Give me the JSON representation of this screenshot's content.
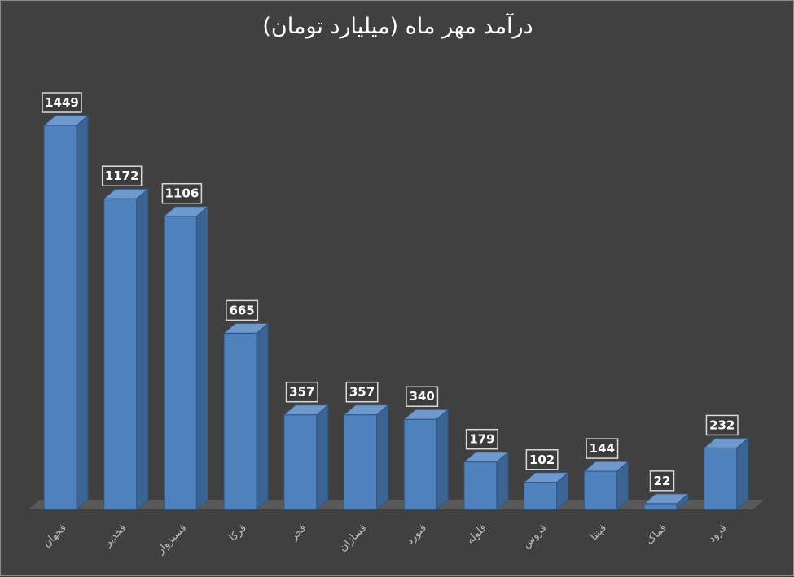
{
  "chart_data": {
    "type": "bar",
    "title": "درآمد مهر ماه (میلیارد تومان)",
    "categories": [
      "فجهان",
      "فخدیر",
      "فسبزوار",
      "فرکا",
      "فجر",
      "فسازان",
      "فنورد",
      "فلوله",
      "فروس",
      "فپنتا",
      "فماک",
      "فرود"
    ],
    "values": [
      1449,
      1172,
      1106,
      665,
      357,
      357,
      340,
      179,
      102,
      144,
      22,
      232
    ],
    "ylim": [
      0,
      1449
    ],
    "grid": false,
    "legend": "none",
    "style": "3d-column",
    "colors": {
      "background": "#404040",
      "bar_front": "#4f81bd",
      "bar_side": "#3b6493",
      "bar_top": "#6f99cd",
      "floor": "#595959",
      "label_box": "#3c3c3c",
      "label_border": "#d9d9d9",
      "title": "#ffffff",
      "category_text": "#bfbfbf"
    }
  }
}
